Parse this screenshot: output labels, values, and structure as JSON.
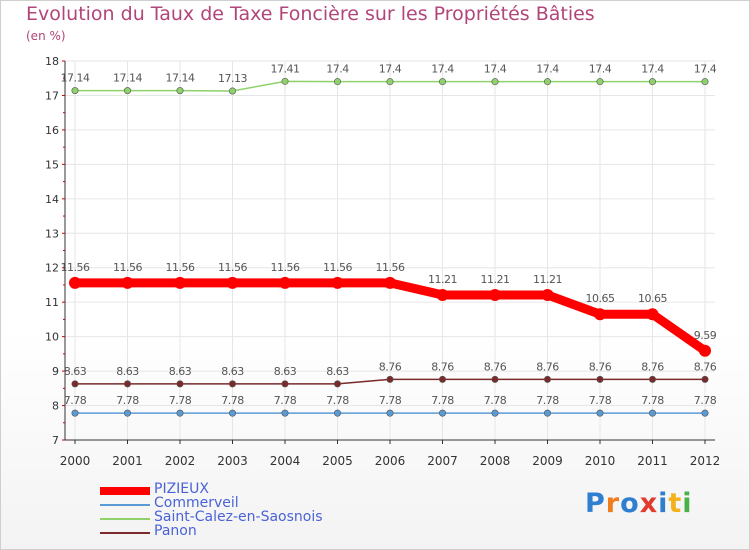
{
  "title": "Evolution du Taux de Taxe Foncière sur les Propriétés Bâties",
  "unit": "(en %)",
  "brand": "Proxiti",
  "colors": {
    "title": "#b2457a",
    "legend_text": "#4a62d6",
    "axis": "#cc0000",
    "grid": "#e6e6e6"
  },
  "chart_data": {
    "type": "line",
    "title": "Evolution du Taux de Taxe Foncière sur les Propriétés Bâties",
    "ylabel": "(en %)",
    "xlabel": "",
    "ylim": [
      7,
      18
    ],
    "yticks": [
      7,
      8,
      9,
      10,
      11,
      12,
      13,
      14,
      15,
      16,
      17,
      18
    ],
    "grid": true,
    "legend_position": "bottom-left",
    "categories": [
      "2000",
      "2001",
      "2002",
      "2003",
      "2004",
      "2005",
      "2006",
      "2007",
      "2008",
      "2009",
      "2010",
      "2011",
      "2012"
    ],
    "series": [
      {
        "name": "PIZIEUX",
        "color": "#ff0000",
        "values": [
          11.56,
          11.56,
          11.56,
          11.56,
          11.56,
          11.56,
          11.56,
          11.21,
          11.21,
          11.21,
          10.65,
          10.65,
          9.59
        ],
        "labels": [
          "11.56",
          "11.56",
          "11.56",
          "11.56",
          "11.56",
          "11.56",
          "11.56",
          "11.21",
          "11.21",
          "11.21",
          "10.65",
          "10.65",
          "9.59"
        ]
      },
      {
        "name": "Commerveil",
        "color": "#5b9bd5",
        "values": [
          7.78,
          7.78,
          7.78,
          7.78,
          7.78,
          7.78,
          7.78,
          7.78,
          7.78,
          7.78,
          7.78,
          7.78,
          7.78
        ],
        "labels": [
          "7.78",
          "7.78",
          "7.78",
          "7.78",
          "7.78",
          "7.78",
          "7.78",
          "7.78",
          "7.78",
          "7.78",
          "7.78",
          "7.78",
          "7.78"
        ]
      },
      {
        "name": "Saint-Calez-en-Saosnois",
        "color": "#8fd16a",
        "values": [
          17.14,
          17.14,
          17.14,
          17.13,
          17.41,
          17.4,
          17.4,
          17.4,
          17.4,
          17.4,
          17.4,
          17.4,
          17.4
        ],
        "labels": [
          "17.14",
          "17.14",
          "17.14",
          "17.13",
          "17.41",
          "17.4",
          "17.4",
          "17.4",
          "17.4",
          "17.4",
          "17.4",
          "17.4",
          "17.4"
        ]
      },
      {
        "name": "Panon",
        "color": "#7a2a2a",
        "values": [
          8.63,
          8.63,
          8.63,
          8.63,
          8.63,
          8.63,
          8.76,
          8.76,
          8.76,
          8.76,
          8.76,
          8.76,
          8.76
        ],
        "labels": [
          "8.63",
          "8.63",
          "8.63",
          "8.63",
          "8.63",
          "8.63",
          "8.76",
          "8.76",
          "8.76",
          "8.76",
          "8.76",
          "8.76",
          "8.76"
        ]
      }
    ]
  }
}
